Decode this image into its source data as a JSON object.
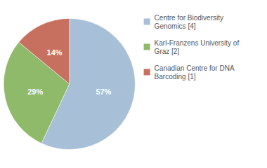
{
  "chart_data": {
    "type": "pie",
    "categories": [
      "Centre for Biodiversity\nGenomics [4]",
      "Karl-Franzens University of\nGraz [2]",
      "Canadian Centre for DNA\nBarcoding [1]"
    ],
    "values": [
      57,
      29,
      14
    ],
    "value_labels": [
      "57%",
      "29%",
      "14%"
    ],
    "colors": [
      "#a8bfd8",
      "#8fba6a",
      "#c87060"
    ],
    "data_labels": true,
    "legend": "upper right"
  }
}
